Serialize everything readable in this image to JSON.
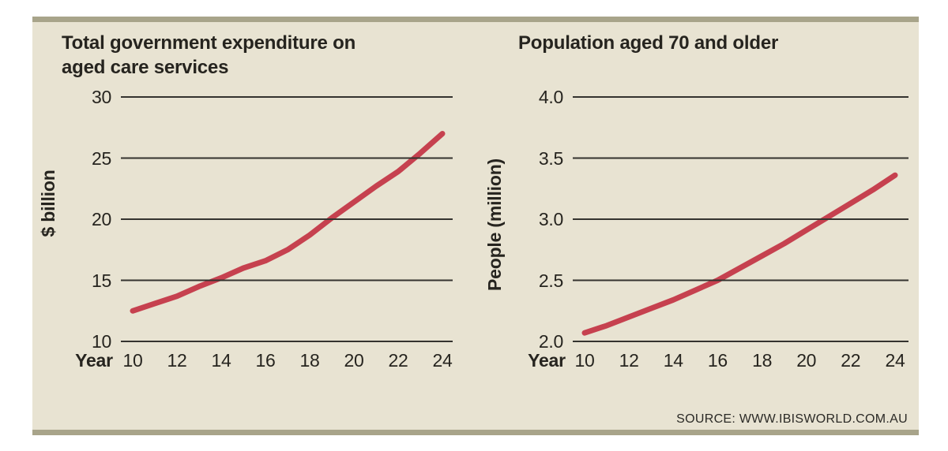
{
  "source": "SOURCE: WWW.IBISWORLD.COM.AU",
  "colors": {
    "panel_background": "#e8e3d2",
    "border_bar": "#a8a48a",
    "gridline": "#34332f",
    "data_line": "#c6414f",
    "text": "#26241f"
  },
  "chart_data": [
    {
      "type": "line",
      "title": "Total government expenditure on aged care services",
      "title_lines": [
        "Total government expenditure on",
        "aged care services"
      ],
      "ylabel": "$ billion",
      "xlabel": "Year",
      "x": [
        10,
        11,
        12,
        13,
        14,
        15,
        16,
        17,
        18,
        19,
        20,
        21,
        22,
        23,
        24
      ],
      "values": [
        12.5,
        13.1,
        13.7,
        14.5,
        15.2,
        16.0,
        16.6,
        17.5,
        18.7,
        20.1,
        21.4,
        22.7,
        23.9,
        25.4,
        27.0
      ],
      "x_tick_labels": [
        "10",
        "12",
        "14",
        "16",
        "18",
        "20",
        "22",
        "24"
      ],
      "y_tick_labels": [
        "30",
        "25",
        "20",
        "15",
        "10"
      ],
      "ylim": [
        10,
        30
      ],
      "xlim": [
        10,
        24
      ],
      "grid": true,
      "legend": "none",
      "line_color": "#c6414f"
    },
    {
      "type": "line",
      "title": "Population aged 70 and older",
      "title_lines": [
        "Population aged 70 and older"
      ],
      "ylabel": "People (million)",
      "xlabel": "Year",
      "x": [
        10,
        11,
        12,
        13,
        14,
        15,
        16,
        17,
        18,
        19,
        20,
        21,
        22,
        23,
        24
      ],
      "values": [
        2.07,
        2.13,
        2.2,
        2.27,
        2.34,
        2.42,
        2.5,
        2.6,
        2.7,
        2.8,
        2.91,
        3.02,
        3.13,
        3.24,
        3.36
      ],
      "x_tick_labels": [
        "10",
        "12",
        "14",
        "16",
        "18",
        "20",
        "22",
        "24"
      ],
      "y_tick_labels": [
        "4.0",
        "3.5",
        "3.0",
        "2.5",
        "2.0"
      ],
      "ylim": [
        2.0,
        4.0
      ],
      "xlim": [
        10,
        24
      ],
      "grid": true,
      "legend": "none",
      "line_color": "#c6414f"
    }
  ]
}
